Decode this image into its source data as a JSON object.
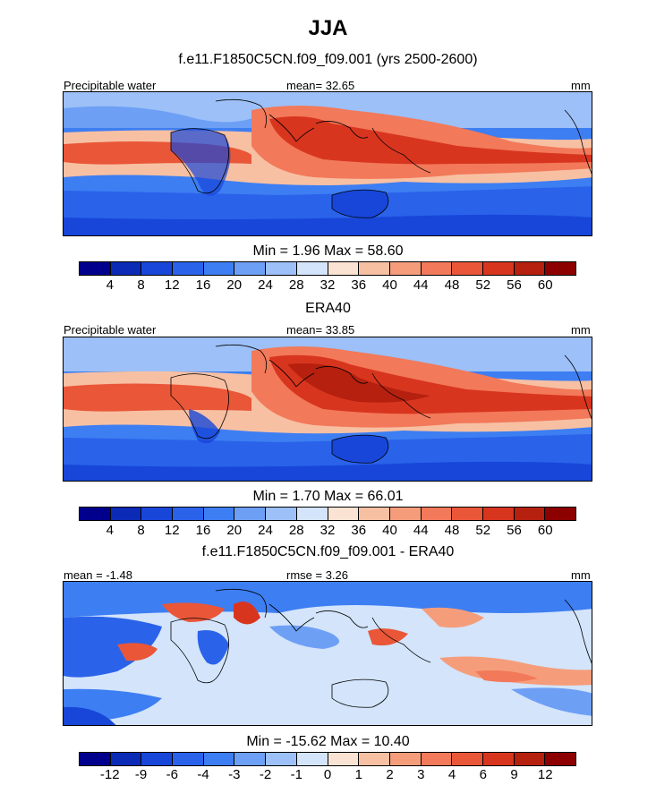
{
  "title": "JJA",
  "panels": [
    {
      "heading": "f.e11.F1850C5CN.f09_f09.001 (yrs 2500-2600)",
      "left_label": "Precipitable water",
      "center_label": "mean=  32.65",
      "right_label": "mm",
      "minmax": "Min =   1.96 Max =  58.60",
      "scale": "absolute"
    },
    {
      "heading": "ERA40",
      "left_label": "Precipitable water",
      "center_label": "mean=  33.85",
      "right_label": "mm",
      "minmax": "Min =   1.70 Max =  66.01",
      "scale": "absolute"
    },
    {
      "heading": "f.e11.F1850C5CN.f09_f09.001 - ERA40",
      "left_label": "mean =  -1.48",
      "center_label": "rmse =   3.26",
      "right_label": "mm",
      "minmax": "Min = -15.62 Max =  10.40",
      "scale": "difference"
    }
  ],
  "colorbars": {
    "absolute": {
      "ticks": [
        "4",
        "8",
        "12",
        "16",
        "20",
        "24",
        "28",
        "32",
        "36",
        "40",
        "44",
        "48",
        "52",
        "56",
        "60"
      ],
      "colors": [
        "#00008c",
        "#0b2ab5",
        "#1746d8",
        "#2a62ea",
        "#3d7ef2",
        "#6d9ff5",
        "#9cc0f7",
        "#d3e4fb",
        "#fbe3d3",
        "#f7c0a3",
        "#f59d7b",
        "#f2795a",
        "#ea5638",
        "#d8351f",
        "#b5200f",
        "#8c0000"
      ]
    },
    "difference": {
      "ticks": [
        "-12",
        "-9",
        "-6",
        "-4",
        "-3",
        "-2",
        "-1",
        "0",
        "1",
        "2",
        "3",
        "4",
        "6",
        "9",
        "12"
      ],
      "colors": [
        "#00008c",
        "#0b2ab5",
        "#1746d8",
        "#2a62ea",
        "#3d7ef2",
        "#6d9ff5",
        "#9cc0f7",
        "#d3e4fb",
        "#fbe3d3",
        "#f7c0a3",
        "#f59d7b",
        "#f2795a",
        "#ea5638",
        "#d8351f",
        "#b5200f",
        "#8c0000"
      ]
    }
  }
}
